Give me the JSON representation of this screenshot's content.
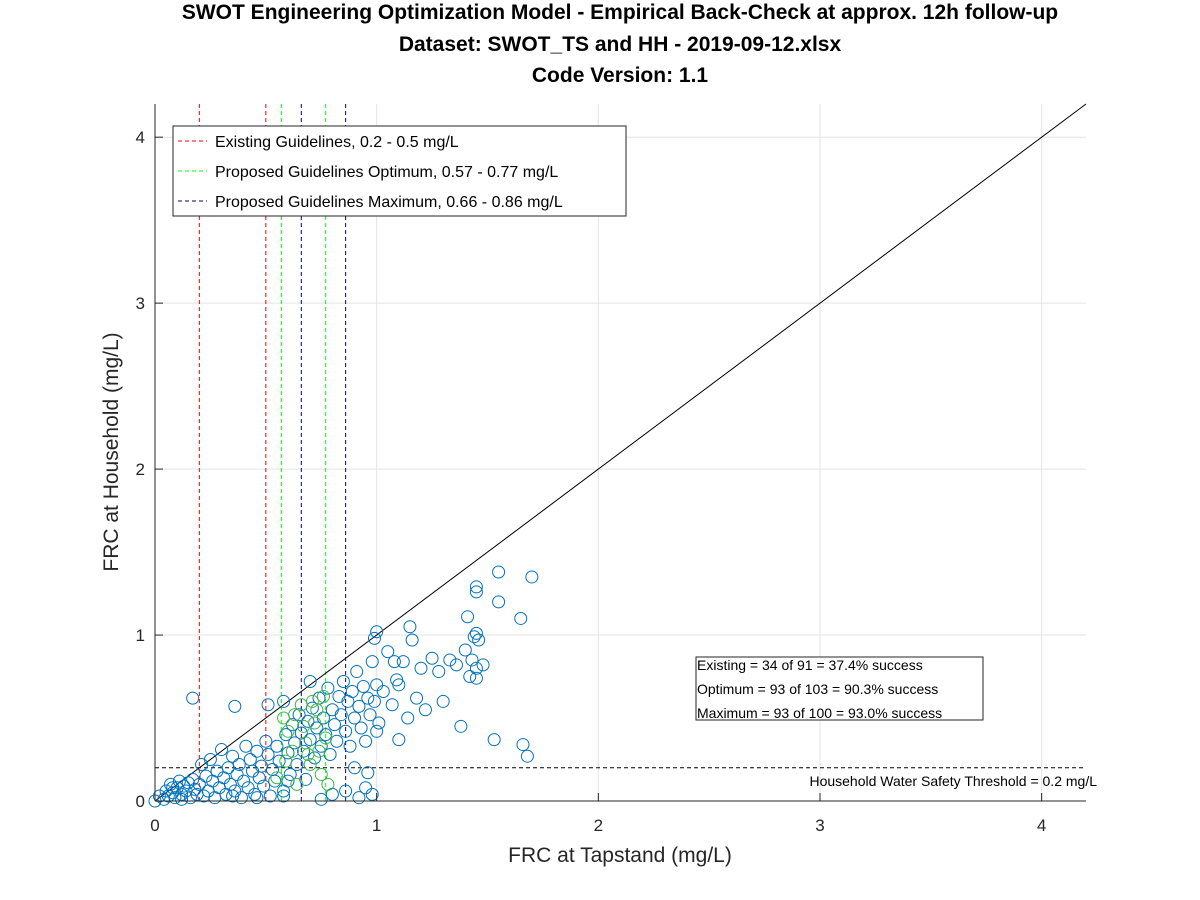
{
  "chart_data": {
    "type": "scatter",
    "title": "SWOT Engineering Optimization Model - Empirical Back-Check at approx. 12h follow-up",
    "subtitle": "Dataset: SWOT_TS and HH - 2019-09-12.xlsx",
    "subtitle2": "Code Version: 1.1",
    "xlabel": "FRC at Tapstand (mg/L)",
    "ylabel": "FRC at Household (mg/L)",
    "xlim": [
      0,
      4.2
    ],
    "ylim": [
      0,
      4.2
    ],
    "xticks": [
      "0",
      "1",
      "2",
      "3",
      "4"
    ],
    "yticks": [
      "0",
      "1",
      "2",
      "3",
      "4"
    ],
    "grid": true,
    "legend": {
      "placement": "top-left",
      "entries": [
        {
          "label": "Existing Guidelines, 0.2 - 0.5 mg/L",
          "color": "#ff0000"
        },
        {
          "label": "Proposed Guidelines Optimum, 0.57 - 0.77 mg/L",
          "color": "#00ff00"
        },
        {
          "label": "Proposed Guidelines Maximum, 0.66 - 0.86 mg/L",
          "color": "#000080"
        }
      ]
    },
    "guideline_lines": [
      {
        "group": "existing",
        "x": 0.2,
        "color": "#ff0000"
      },
      {
        "group": "existing",
        "x": 0.5,
        "color": "#ff0000"
      },
      {
        "group": "optimum",
        "x": 0.57,
        "color": "#00ff00"
      },
      {
        "group": "optimum",
        "x": 0.77,
        "color": "#00ff00"
      },
      {
        "group": "maximum",
        "x": 0.66,
        "color": "#000080"
      },
      {
        "group": "maximum",
        "x": 0.86,
        "color": "#000080"
      }
    ],
    "identity_line": {
      "from": [
        0,
        0
      ],
      "to": [
        4.2,
        4.2
      ],
      "color": "#000000"
    },
    "threshold": {
      "y": 0.2,
      "label": "Household Water Safety Threshold = 0.2 mg/L"
    },
    "stats": [
      "Existing =  34 of  91 = 37.4% success",
      "Optimum =  93 of 103 = 90.3% success",
      "Maximum =  93 of 100 = 93.0% success"
    ],
    "marker_colors": {
      "blue": "#0072bd",
      "green": "#3cb44b"
    },
    "points_blue": [
      [
        0.0,
        0.0
      ],
      [
        0.02,
        0.03
      ],
      [
        0.04,
        0.01
      ],
      [
        0.05,
        0.06
      ],
      [
        0.06,
        0.03
      ],
      [
        0.07,
        0.1
      ],
      [
        0.08,
        0.05
      ],
      [
        0.09,
        0.02
      ],
      [
        0.1,
        0.08
      ],
      [
        0.11,
        0.12
      ],
      [
        0.12,
        0.04
      ],
      [
        0.13,
        0.09
      ],
      [
        0.14,
        0.06
      ],
      [
        0.15,
        0.11
      ],
      [
        0.16,
        0.02
      ],
      [
        0.17,
        0.13
      ],
      [
        0.18,
        0.07
      ],
      [
        0.19,
        0.04
      ],
      [
        0.2,
        0.1
      ],
      [
        0.21,
        0.22
      ],
      [
        0.22,
        0.03
      ],
      [
        0.23,
        0.15
      ],
      [
        0.24,
        0.06
      ],
      [
        0.25,
        0.25
      ],
      [
        0.26,
        0.12
      ],
      [
        0.27,
        0.02
      ],
      [
        0.28,
        0.18
      ],
      [
        0.29,
        0.08
      ],
      [
        0.3,
        0.31
      ],
      [
        0.31,
        0.14
      ],
      [
        0.32,
        0.04
      ],
      [
        0.33,
        0.2
      ],
      [
        0.34,
        0.1
      ],
      [
        0.35,
        0.27
      ],
      [
        0.36,
        0.06
      ],
      [
        0.37,
        0.16
      ],
      [
        0.38,
        0.22
      ],
      [
        0.39,
        0.02
      ],
      [
        0.4,
        0.12
      ],
      [
        0.41,
        0.33
      ],
      [
        0.42,
        0.08
      ],
      [
        0.43,
        0.25
      ],
      [
        0.44,
        0.18
      ],
      [
        0.45,
        0.04
      ],
      [
        0.46,
        0.3
      ],
      [
        0.47,
        0.14
      ],
      [
        0.48,
        0.21
      ],
      [
        0.49,
        0.09
      ],
      [
        0.5,
        0.36
      ],
      [
        0.51,
        0.28
      ],
      [
        0.52,
        0.03
      ],
      [
        0.53,
        0.19
      ],
      [
        0.54,
        0.12
      ],
      [
        0.55,
        0.33
      ],
      [
        0.56,
        0.24
      ],
      [
        0.58,
        0.06
      ],
      [
        0.59,
        0.4
      ],
      [
        0.6,
        0.29
      ],
      [
        0.61,
        0.16
      ],
      [
        0.62,
        0.46
      ],
      [
        0.63,
        0.35
      ],
      [
        0.64,
        0.22
      ],
      [
        0.65,
        0.52
      ],
      [
        0.66,
        0.41
      ],
      [
        0.67,
        0.3
      ],
      [
        0.68,
        0.13
      ],
      [
        0.69,
        0.48
      ],
      [
        0.7,
        0.37
      ],
      [
        0.71,
        0.56
      ],
      [
        0.72,
        0.26
      ],
      [
        0.73,
        0.44
      ],
      [
        0.74,
        0.62
      ],
      [
        0.75,
        0.33
      ],
      [
        0.76,
        0.5
      ],
      [
        0.77,
        0.4
      ],
      [
        0.78,
        0.68
      ],
      [
        0.79,
        0.28
      ],
      [
        0.8,
        0.55
      ],
      [
        0.81,
        0.46
      ],
      [
        0.82,
        0.36
      ],
      [
        0.83,
        0.63
      ],
      [
        0.84,
        0.52
      ],
      [
        0.85,
        0.72
      ],
      [
        0.86,
        0.42
      ],
      [
        0.87,
        0.6
      ],
      [
        0.88,
        0.33
      ],
      [
        0.89,
        0.66
      ],
      [
        0.9,
        0.5
      ],
      [
        0.91,
        0.78
      ],
      [
        0.92,
        0.57
      ],
      [
        0.93,
        0.44
      ],
      [
        0.94,
        0.69
      ],
      [
        0.95,
        0.36
      ],
      [
        0.96,
        0.62
      ],
      [
        0.97,
        0.52
      ],
      [
        0.98,
        0.84
      ],
      [
        0.99,
        0.6
      ],
      [
        1.0,
        0.7
      ],
      [
        1.01,
        0.47
      ],
      [
        1.03,
        0.66
      ],
      [
        1.05,
        0.9
      ],
      [
        1.07,
        0.58
      ],
      [
        1.09,
        0.73
      ],
      [
        1.1,
        0.37
      ],
      [
        1.12,
        0.84
      ],
      [
        1.14,
        0.5
      ],
      [
        1.16,
        0.97
      ],
      [
        1.18,
        0.62
      ],
      [
        1.2,
        0.8
      ],
      [
        1.22,
        0.55
      ],
      [
        1.25,
        0.86
      ],
      [
        1.28,
        0.78
      ],
      [
        1.3,
        0.6
      ],
      [
        1.33,
        0.85
      ],
      [
        1.36,
        0.82
      ],
      [
        1.38,
        0.45
      ],
      [
        1.4,
        0.91
      ],
      [
        1.42,
        0.75
      ],
      [
        1.43,
        0.85
      ],
      [
        1.44,
        0.99
      ],
      [
        1.45,
        0.8
      ],
      [
        1.48,
        0.82
      ],
      [
        1.53,
        0.37
      ],
      [
        1.55,
        1.2
      ],
      [
        1.41,
        1.11
      ],
      [
        1.45,
        1.26
      ],
      [
        1.45,
        1.29
      ],
      [
        1.55,
        1.38
      ],
      [
        1.65,
        1.1
      ],
      [
        1.7,
        1.35
      ],
      [
        1.66,
        0.34
      ],
      [
        1.68,
        0.27
      ],
      [
        0.17,
        0.62
      ],
      [
        0.36,
        0.57
      ],
      [
        0.51,
        0.58
      ],
      [
        0.7,
        0.72
      ],
      [
        0.58,
        0.6
      ],
      [
        1.0,
        1.02
      ],
      [
        0.99,
        0.98
      ],
      [
        1.15,
        1.05
      ],
      [
        1.45,
        1.01
      ],
      [
        1.45,
        0.74
      ],
      [
        1.46,
        0.97
      ],
      [
        1.08,
        0.84
      ],
      [
        1.1,
        0.7
      ],
      [
        1.0,
        0.42
      ],
      [
        0.8,
        0.04
      ],
      [
        0.86,
        0.06
      ],
      [
        0.92,
        0.02
      ],
      [
        0.95,
        0.08
      ],
      [
        0.98,
        0.04
      ],
      [
        0.75,
        0.01
      ],
      [
        0.9,
        0.2
      ],
      [
        0.96,
        0.17
      ],
      [
        0.58,
        0.03
      ],
      [
        0.6,
        0.12
      ],
      [
        0.46,
        0.02
      ],
      [
        0.35,
        0.03
      ],
      [
        0.12,
        0.01
      ],
      [
        0.08,
        0.08
      ]
    ],
    "points_green": [
      [
        0.55,
        0.14
      ],
      [
        0.58,
        0.5
      ],
      [
        0.6,
        0.42
      ],
      [
        0.62,
        0.3
      ],
      [
        0.64,
        0.1
      ],
      [
        0.66,
        0.58
      ],
      [
        0.68,
        0.35
      ],
      [
        0.7,
        0.22
      ],
      [
        0.72,
        0.47
      ],
      [
        0.74,
        0.3
      ],
      [
        0.76,
        0.63
      ],
      [
        0.77,
        0.38
      ],
      [
        0.75,
        0.16
      ],
      [
        0.73,
        0.55
      ],
      [
        0.67,
        0.45
      ],
      [
        0.59,
        0.24
      ],
      [
        0.71,
        0.6
      ],
      [
        0.63,
        0.52
      ],
      [
        0.69,
        0.28
      ],
      [
        0.78,
        0.1
      ]
    ]
  }
}
